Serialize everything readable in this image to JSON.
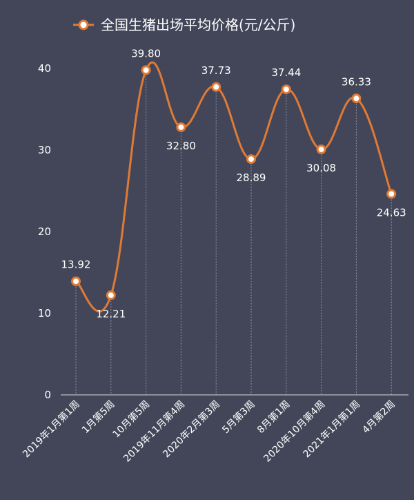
{
  "chart_data": {
    "type": "line",
    "title": "",
    "xlabel": "",
    "ylabel": "",
    "ylim": [
      0,
      45
    ],
    "yticks": [
      0,
      10,
      20,
      30,
      40
    ],
    "grid": "vertical dashed lines at each category",
    "legend_position": "top",
    "smooth": true,
    "categories": [
      "2019年1月第1周",
      "1月第5周",
      "10月第5周",
      "2019年11月第4周",
      "2020年2月第3周",
      "5月第3周",
      "8月第1周",
      "2020年10月第4周",
      "2021年1月第1周",
      "4月第2周"
    ],
    "series": [
      {
        "name": "全国生猪出场平均价格(元/公斤)",
        "values": [
          13.92,
          12.21,
          39.8,
          32.8,
          37.73,
          28.89,
          37.44,
          30.08,
          36.33,
          24.63
        ],
        "labels": [
          "13.92",
          "12.21",
          "39.80",
          "32.80",
          "37.73",
          "28.89",
          "37.44",
          "30.08",
          "36.33",
          "24.63"
        ],
        "color": "#e07a35"
      }
    ]
  },
  "colors": {
    "background": "#434659",
    "line": "#e07a35",
    "text": "#ffffff",
    "axis": "#d8d8d8",
    "grid": "#8e91a3"
  }
}
